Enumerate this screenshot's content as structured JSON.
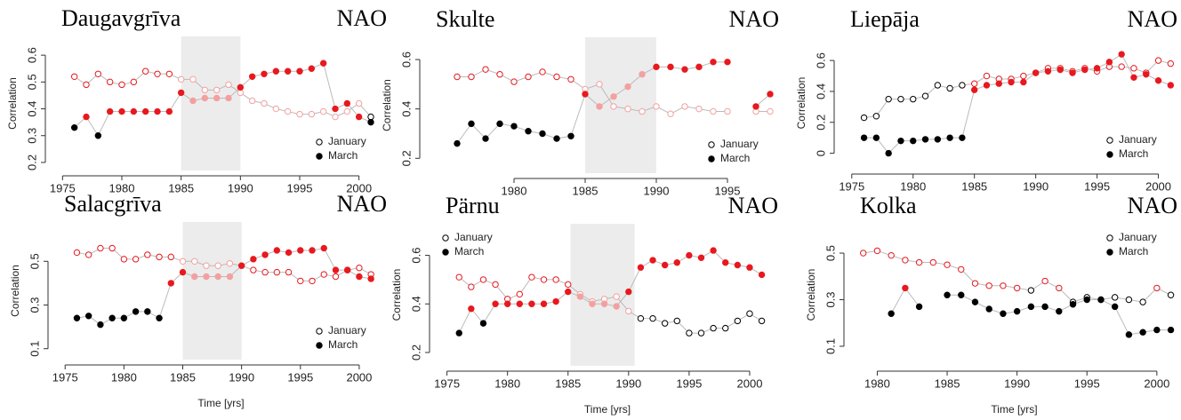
{
  "chart_data": [
    {
      "type": "line",
      "title": "Daugavgrīva",
      "subtitle": "NAO",
      "ylabel": "Correlation",
      "x": [
        1976,
        1977,
        1978,
        1979,
        1980,
        1981,
        1982,
        1983,
        1984,
        1985,
        1986,
        1987,
        1988,
        1989,
        1990,
        1991,
        1992,
        1993,
        1994,
        1995,
        1996,
        1997,
        1998,
        1999,
        2000,
        2001
      ],
      "series": [
        {
          "name": "January",
          "marker": "open",
          "values": [
            0.52,
            0.49,
            0.53,
            0.5,
            0.49,
            0.5,
            0.54,
            0.53,
            0.53,
            0.51,
            0.51,
            0.47,
            0.47,
            0.49,
            0.46,
            0.43,
            0.42,
            0.4,
            0.39,
            0.38,
            0.38,
            0.39,
            0.37,
            0.39,
            0.42,
            0.37
          ],
          "colors": [
            "#e8191e",
            "#e8191e",
            "#e8191e",
            "#e8191e",
            "#e8191e",
            "#e8191e",
            "#e8191e",
            "#e8191e",
            "#e8191e",
            "#f4a0a0",
            "#f4a0a0",
            "#f4a0a0",
            "#f4a0a0",
            "#f4a0a0",
            "#f4a0a0",
            "#f4a0a0",
            "#f4a0a0",
            "#f4a0a0",
            "#f4a0a0",
            "#f4a0a0",
            "#f4a0a0",
            "#f4a0a0",
            "#f4a0a0",
            "#f4a0a0",
            "#f4a0a0",
            "#000000"
          ]
        },
        {
          "name": "March",
          "marker": "filled",
          "values": [
            0.33,
            0.37,
            0.3,
            0.39,
            0.39,
            0.39,
            0.39,
            0.39,
            0.39,
            0.46,
            0.43,
            0.44,
            0.44,
            0.44,
            0.48,
            0.52,
            0.53,
            0.54,
            0.54,
            0.54,
            0.55,
            0.57,
            0.4,
            0.42,
            0.37,
            0.35
          ],
          "colors": [
            "#000000",
            "#e8191e",
            "#000000",
            "#e8191e",
            "#e8191e",
            "#e8191e",
            "#e8191e",
            "#e8191e",
            "#e8191e",
            "#e8191e",
            "#f4a0a0",
            "#f4a0a0",
            "#f4a0a0",
            "#f4a0a0",
            "#e8191e",
            "#e8191e",
            "#e8191e",
            "#e8191e",
            "#e8191e",
            "#e8191e",
            "#e8191e",
            "#e8191e",
            "#e8191e",
            "#e8191e",
            "#e8191e",
            "#000000"
          ]
        }
      ],
      "xlim": [
        1974,
        2002.5
      ],
      "ylim": [
        0.17,
        0.67
      ],
      "xticks": [
        1975,
        1980,
        1985,
        1990,
        1995,
        2000
      ],
      "yticks": [
        0.2,
        0.3,
        0.4,
        0.5,
        0.6
      ],
      "shade": [
        1985,
        1990
      ],
      "legend": "bottomright"
    },
    {
      "type": "line",
      "title": "Skulte",
      "subtitle": "NAO",
      "ylabel": "Correlation",
      "x": [
        1976,
        1977,
        1978,
        1979,
        1980,
        1981,
        1982,
        1983,
        1984,
        1985,
        1986,
        1987,
        1988,
        1989,
        1990,
        1991,
        1992,
        1993,
        1994,
        1995,
        1996,
        1997,
        1998
      ],
      "series": [
        {
          "name": "January",
          "marker": "open",
          "values": [
            0.53,
            0.53,
            0.56,
            0.54,
            0.51,
            0.53,
            0.55,
            0.53,
            0.52,
            0.48,
            0.5,
            0.41,
            0.4,
            0.39,
            0.41,
            0.38,
            0.41,
            0.4,
            0.39,
            0.39,
            null,
            0.39,
            0.39
          ],
          "colors": [
            "#e8191e",
            "#e8191e",
            "#e8191e",
            "#e8191e",
            "#e8191e",
            "#e8191e",
            "#e8191e",
            "#e8191e",
            "#e8191e",
            "#f4a0a0",
            "#f4a0a0",
            "#f4a0a0",
            "#f4a0a0",
            "#f4a0a0",
            "#f4a0a0",
            "#f4a0a0",
            "#f4a0a0",
            "#f4a0a0",
            "#f4a0a0",
            "#f4a0a0",
            "#f4a0a0",
            "#f4a0a0",
            "#f4a0a0"
          ]
        },
        {
          "name": "March",
          "marker": "filled",
          "values": [
            0.26,
            0.34,
            0.28,
            0.34,
            0.33,
            0.31,
            0.3,
            0.28,
            0.29,
            0.46,
            0.41,
            0.45,
            0.49,
            0.54,
            0.57,
            0.57,
            0.56,
            0.57,
            0.59,
            0.59,
            null,
            0.41,
            0.46
          ],
          "colors": [
            "#000000",
            "#000000",
            "#000000",
            "#000000",
            "#000000",
            "#000000",
            "#000000",
            "#000000",
            "#000000",
            "#e8191e",
            "#f4a0a0",
            "#f4a0a0",
            "#f4a0a0",
            "#f4a0a0",
            "#e8191e",
            "#e8191e",
            "#e8191e",
            "#e8191e",
            "#e8191e",
            "#e8191e",
            "#e8191e",
            "#e8191e",
            "#e8191e"
          ]
        }
      ],
      "xlim": [
        1973.75,
        1998.75
      ],
      "ylim": [
        0.14,
        0.69
      ],
      "xticks": [
        1980,
        1985,
        1990,
        1995
      ],
      "yticks": [
        0.2,
        0.4,
        0.6
      ],
      "shade": [
        1985,
        1990
      ],
      "legend": "bottomright"
    },
    {
      "type": "line",
      "title": "Liepāja",
      "subtitle": "NAO",
      "ylabel": "Correlation",
      "x": [
        1976,
        1977,
        1978,
        1979,
        1980,
        1981,
        1982,
        1983,
        1984,
        1985,
        1986,
        1987,
        1988,
        1989,
        1990,
        1991,
        1992,
        1993,
        1994,
        1995,
        1996,
        1997,
        1998,
        1999,
        2000,
        2001
      ],
      "series": [
        {
          "name": "January",
          "marker": "open",
          "values": [
            0.23,
            0.24,
            0.35,
            0.35,
            0.35,
            0.37,
            0.44,
            0.42,
            0.44,
            0.45,
            0.5,
            0.48,
            0.48,
            0.5,
            0.52,
            0.55,
            0.55,
            0.53,
            0.55,
            0.53,
            0.56,
            0.56,
            0.55,
            0.52,
            0.6,
            0.58
          ],
          "colors": [
            "#000000",
            "#000000",
            "#000000",
            "#000000",
            "#000000",
            "#000000",
            "#000000",
            "#000000",
            "#000000",
            "#e8191e",
            "#e8191e",
            "#e8191e",
            "#e8191e",
            "#e8191e",
            "#e8191e",
            "#e8191e",
            "#e8191e",
            "#e8191e",
            "#e8191e",
            "#e8191e",
            "#e8191e",
            "#e8191e",
            "#e8191e",
            "#e8191e",
            "#e8191e",
            "#e8191e"
          ]
        },
        {
          "name": "March",
          "marker": "filled",
          "values": [
            0.1,
            0.1,
            0.0,
            0.08,
            0.08,
            0.09,
            0.09,
            0.1,
            0.1,
            0.41,
            0.44,
            0.45,
            0.46,
            0.46,
            0.52,
            0.53,
            0.54,
            0.52,
            0.54,
            0.55,
            0.59,
            0.64,
            0.49,
            0.51,
            0.47,
            0.44
          ],
          "colors": [
            "#000000",
            "#000000",
            "#000000",
            "#000000",
            "#000000",
            "#000000",
            "#000000",
            "#000000",
            "#000000",
            "#e8191e",
            "#e8191e",
            "#e8191e",
            "#e8191e",
            "#e8191e",
            "#e8191e",
            "#e8191e",
            "#e8191e",
            "#e8191e",
            "#e8191e",
            "#e8191e",
            "#e8191e",
            "#e8191e",
            "#e8191e",
            "#e8191e",
            "#e8191e",
            "#e8191e"
          ]
        }
      ],
      "xlim": [
        1974,
        2001.7
      ],
      "ylim": [
        -0.1,
        0.75
      ],
      "xticks": [
        1975,
        1980,
        1985,
        1990,
        1995,
        2000
      ],
      "yticks": [
        0.0,
        0.2,
        0.4,
        0.6
      ],
      "legend": "bottomright"
    },
    {
      "type": "line",
      "title": "Salacgrīva",
      "subtitle": "NAO",
      "ylabel": "Correlation",
      "xlabel": "Time [yrs]",
      "x": [
        1976,
        1977,
        1978,
        1979,
        1980,
        1981,
        1982,
        1983,
        1984,
        1985,
        1986,
        1987,
        1988,
        1989,
        1990,
        1991,
        1992,
        1993,
        1994,
        1995,
        1996,
        1997,
        1998,
        1999,
        2000,
        2001
      ],
      "series": [
        {
          "name": "January",
          "marker": "open",
          "values": [
            0.54,
            0.53,
            0.56,
            0.56,
            0.51,
            0.51,
            0.53,
            0.52,
            0.52,
            0.5,
            0.5,
            0.48,
            0.48,
            0.49,
            0.48,
            0.46,
            0.45,
            0.45,
            0.45,
            0.41,
            0.41,
            0.44,
            0.43,
            0.46,
            0.47,
            0.44
          ],
          "colors": [
            "#e8191e",
            "#e8191e",
            "#e8191e",
            "#e8191e",
            "#e8191e",
            "#e8191e",
            "#e8191e",
            "#e8191e",
            "#e8191e",
            "#f4a0a0",
            "#f4a0a0",
            "#f4a0a0",
            "#f4a0a0",
            "#f4a0a0",
            "#f4a0a0",
            "#e8191e",
            "#e8191e",
            "#e8191e",
            "#e8191e",
            "#e8191e",
            "#e8191e",
            "#e8191e",
            "#e8191e",
            "#e8191e",
            "#e8191e",
            "#e8191e"
          ]
        },
        {
          "name": "March",
          "marker": "filled",
          "values": [
            0.24,
            0.25,
            0.21,
            0.24,
            0.24,
            0.27,
            0.27,
            0.24,
            0.4,
            0.45,
            0.43,
            0.43,
            0.43,
            0.43,
            0.48,
            0.51,
            0.53,
            0.55,
            0.54,
            0.55,
            0.55,
            0.56,
            0.46,
            0.46,
            0.43,
            0.42
          ],
          "colors": [
            "#000000",
            "#000000",
            "#000000",
            "#000000",
            "#000000",
            "#000000",
            "#000000",
            "#000000",
            "#e8191e",
            "#e8191e",
            "#f4a0a0",
            "#f4a0a0",
            "#f4a0a0",
            "#f4a0a0",
            "#e8191e",
            "#e8191e",
            "#e8191e",
            "#e8191e",
            "#e8191e",
            "#e8191e",
            "#e8191e",
            "#e8191e",
            "#e8191e",
            "#e8191e",
            "#e8191e",
            "#e8191e"
          ]
        }
      ],
      "xlim": [
        1974,
        2002.5
      ],
      "ylim": [
        0.05,
        0.68
      ],
      "xticks": [
        1975,
        1980,
        1985,
        1990,
        1995,
        2000
      ],
      "yticks": [
        0.1,
        0.3,
        0.5
      ],
      "shade": [
        1985,
        1990
      ],
      "legend": "bottomright"
    },
    {
      "type": "line",
      "title": "Pärnu",
      "subtitle": "NAO",
      "ylabel": "Correlation",
      "xlabel": "Time [yrs]",
      "x": [
        1976,
        1977,
        1978,
        1979,
        1980,
        1981,
        1982,
        1983,
        1984,
        1985,
        1986,
        1987,
        1988,
        1989,
        1990,
        1991,
        1992,
        1993,
        1994,
        1995,
        1996,
        1997,
        1998,
        1999,
        2000,
        2001
      ],
      "series": [
        {
          "name": "January",
          "marker": "open",
          "values": [
            0.51,
            0.47,
            0.5,
            0.48,
            0.42,
            0.44,
            0.51,
            0.5,
            0.5,
            0.48,
            0.44,
            0.41,
            0.42,
            0.43,
            0.37,
            0.34,
            0.34,
            0.32,
            0.33,
            0.28,
            0.28,
            0.3,
            0.3,
            0.33,
            0.36,
            0.33
          ],
          "colors": [
            "#e8191e",
            "#e8191e",
            "#e8191e",
            "#e8191e",
            "#e8191e",
            "#e8191e",
            "#e8191e",
            "#e8191e",
            "#e8191e",
            "#e8191e",
            "#f4a0a0",
            "#f4a0a0",
            "#f4a0a0",
            "#f4a0a0",
            "#f4a0a0",
            "#000000",
            "#000000",
            "#000000",
            "#000000",
            "#000000",
            "#000000",
            "#000000",
            "#000000",
            "#000000",
            "#000000",
            "#000000"
          ]
        },
        {
          "name": "March",
          "marker": "filled",
          "values": [
            0.28,
            0.38,
            0.32,
            0.4,
            0.4,
            0.4,
            0.4,
            0.4,
            0.41,
            0.45,
            0.43,
            0.4,
            0.4,
            0.39,
            0.45,
            0.55,
            0.58,
            0.56,
            0.57,
            0.6,
            0.59,
            0.62,
            0.57,
            0.56,
            0.55,
            0.52
          ],
          "colors": [
            "#000000",
            "#e8191e",
            "#000000",
            "#e8191e",
            "#e8191e",
            "#e8191e",
            "#e8191e",
            "#e8191e",
            "#e8191e",
            "#e8191e",
            "#f4a0a0",
            "#f4a0a0",
            "#f4a0a0",
            "#f4a0a0",
            "#e8191e",
            "#e8191e",
            "#e8191e",
            "#e8191e",
            "#e8191e",
            "#e8191e",
            "#e8191e",
            "#e8191e",
            "#e8191e",
            "#e8191e",
            "#e8191e",
            "#e8191e"
          ]
        }
      ],
      "xlim": [
        1974,
        2002.5
      ],
      "ylim": [
        0.145,
        0.73
      ],
      "xticks": [
        1975,
        1980,
        1985,
        1990,
        1995,
        2000
      ],
      "yticks": [
        0.2,
        0.4,
        0.6
      ],
      "shade": [
        1985.2,
        1990.5
      ],
      "legend": "topleft"
    },
    {
      "type": "line",
      "title": "Kolka",
      "subtitle": "NAO",
      "ylabel": "Correlation",
      "xlabel": "Time [yrs]",
      "x": [
        1979,
        1980,
        1981,
        1982,
        1983,
        1984,
        1985,
        1986,
        1987,
        1988,
        1989,
        1990,
        1991,
        1992,
        1993,
        1994,
        1995,
        1996,
        1997,
        1998,
        1999,
        2000,
        2001
      ],
      "series": [
        {
          "name": "January",
          "marker": "open",
          "values": [
            0.5,
            0.51,
            0.49,
            0.47,
            0.46,
            0.46,
            0.45,
            0.43,
            0.37,
            0.36,
            0.36,
            0.35,
            0.34,
            0.38,
            0.35,
            0.29,
            0.31,
            0.3,
            0.31,
            0.3,
            0.29,
            0.35,
            0.32
          ],
          "colors": [
            "#e8191e",
            "#e8191e",
            "#e8191e",
            "#e8191e",
            "#e8191e",
            "#e8191e",
            "#e8191e",
            "#e8191e",
            "#e8191e",
            "#e8191e",
            "#e8191e",
            "#e8191e",
            "#000000",
            "#e8191e",
            "#e8191e",
            "#000000",
            "#000000",
            "#000000",
            "#000000",
            "#000000",
            "#000000",
            "#e8191e",
            "#000000"
          ]
        },
        {
          "name": "March",
          "marker": "filled",
          "values": [
            null,
            null,
            0.24,
            0.35,
            0.27,
            null,
            0.32,
            0.32,
            0.29,
            0.26,
            0.24,
            0.25,
            0.27,
            0.27,
            0.25,
            0.28,
            0.3,
            0.3,
            0.27,
            0.15,
            0.16,
            0.17,
            0.17
          ],
          "colors": [
            "#000000",
            "#000000",
            "#000000",
            "#e8191e",
            "#000000",
            "#000000",
            "#000000",
            "#000000",
            "#000000",
            "#000000",
            "#000000",
            "#000000",
            "#000000",
            "#000000",
            "#000000",
            "#000000",
            "#000000",
            "#000000",
            "#000000",
            "#000000",
            "#000000",
            "#000000",
            "#000000"
          ]
        }
      ],
      "xlim": [
        1978,
        2001.6
      ],
      "ylim": [
        0.016,
        0.626
      ],
      "xticks": [
        1980,
        1985,
        1990,
        1995,
        2000
      ],
      "yticks": [
        0.1,
        0.3,
        0.5
      ],
      "legend": "topright"
    }
  ]
}
